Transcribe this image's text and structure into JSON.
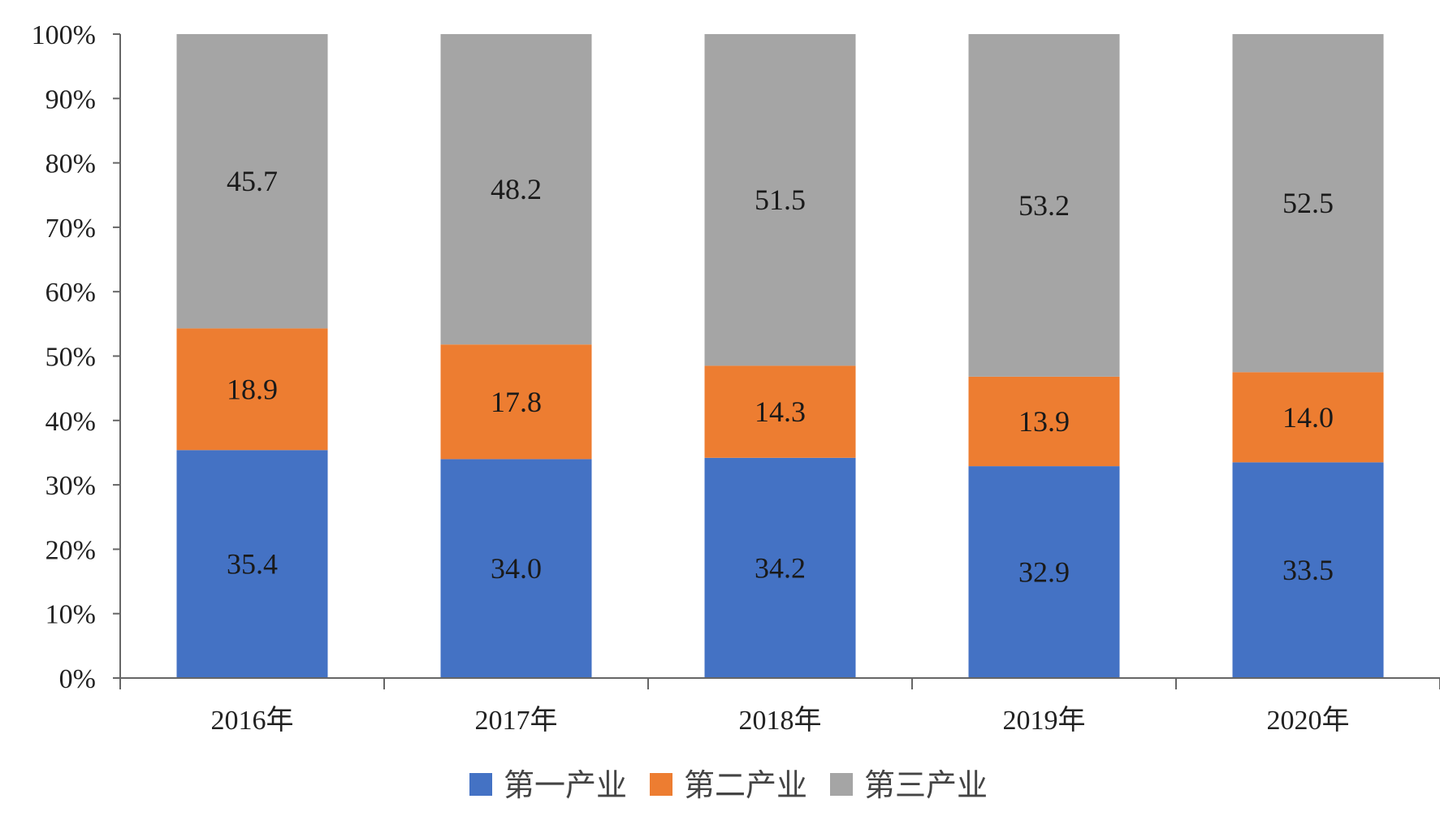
{
  "chart_data": {
    "type": "bar",
    "stacked": true,
    "percent_stacked": true,
    "categories": [
      "2016年",
      "2017年",
      "2018年",
      "2019年",
      "2020年"
    ],
    "series": [
      {
        "name": "第一产业",
        "color": "#4472C4",
        "values": [
          35.4,
          34.0,
          34.2,
          32.9,
          33.5
        ]
      },
      {
        "name": "第二产业",
        "color": "#ED7D31",
        "values": [
          18.9,
          17.8,
          14.3,
          13.9,
          14.0
        ]
      },
      {
        "name": "第三产业",
        "color": "#A5A5A5",
        "values": [
          45.7,
          48.2,
          51.5,
          53.2,
          52.5
        ]
      }
    ],
    "ylim": [
      0,
      100
    ],
    "yticks": [
      "0%",
      "10%",
      "20%",
      "30%",
      "40%",
      "50%",
      "60%",
      "70%",
      "80%",
      "90%",
      "100%"
    ],
    "grid": false,
    "legend_position": "bottom",
    "title": "",
    "xlabel": "",
    "ylabel": ""
  }
}
